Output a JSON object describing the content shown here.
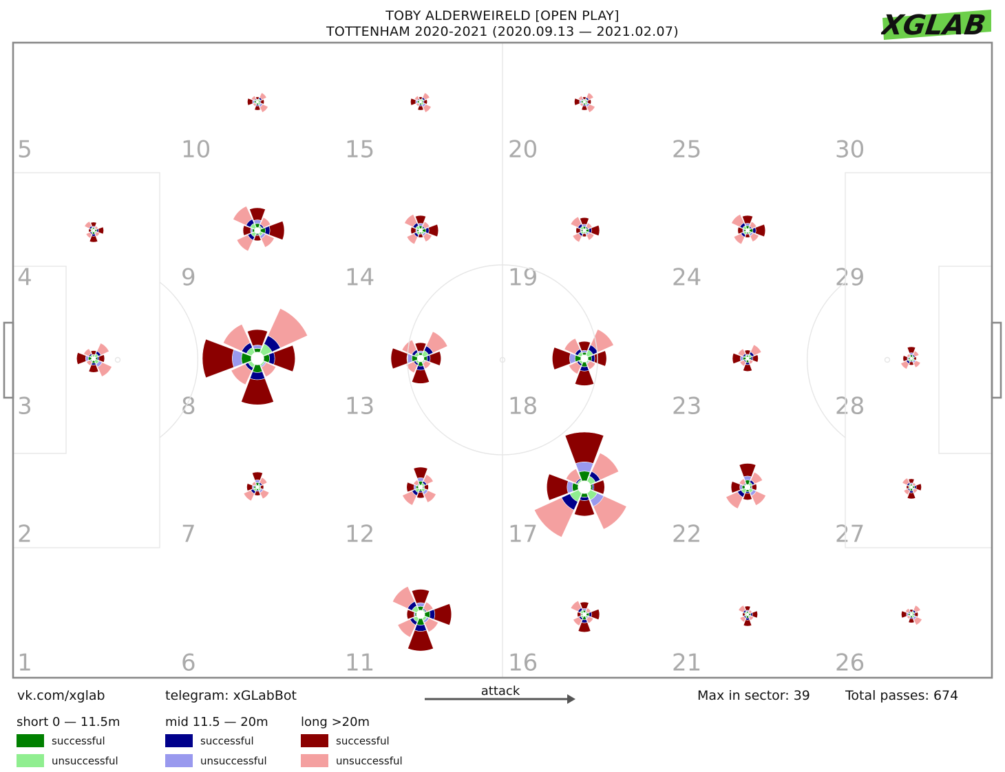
{
  "title": {
    "line1": "TOBY ALDERWEIRELD [OPEN PLAY]",
    "line2": "TOTTENHAM 2020-2021 (2020.09.13 — 2021.02.07)"
  },
  "logo_text": "XGLAB",
  "footer": {
    "vk": "vk.com/xglab",
    "telegram": "telegram: xGLabBot",
    "attack": "attack",
    "max_sector": "Max in sector: 39",
    "total_passes": "Total passes: 674"
  },
  "legend": {
    "short": {
      "title": "short 0 — 11.5m",
      "successful": "successful",
      "unsuccessful": "unsuccessful"
    },
    "mid": {
      "title": "mid 11.5 — 20m",
      "successful": "successful",
      "unsuccessful": "unsuccessful"
    },
    "long": {
      "title": "long >20m",
      "successful": "successful",
      "unsuccessful": "unsuccessful"
    }
  },
  "colors": {
    "short_successful": "#008000",
    "short_unsuccessful": "#90ee90",
    "mid_successful": "#00008b",
    "mid_unsuccessful": "#9999ee",
    "long_successful": "#8b0000",
    "long_unsuccessful": "#f4a0a0",
    "logo_green": "#6ccf4a",
    "pitch_line": "#e8e8e8",
    "frame": "#888888",
    "sector_number": "#aaaaaa"
  },
  "chart_data": {
    "type": "rose",
    "sectors": [
      "1",
      "2",
      "3",
      "4",
      "5",
      "6",
      "7",
      "8",
      "9",
      "10",
      "11",
      "12",
      "13",
      "14",
      "15",
      "16",
      "17",
      "18",
      "19",
      "20",
      "21",
      "22",
      "23",
      "24",
      "25",
      "26",
      "27",
      "28",
      "29",
      "30"
    ],
    "max_in_sector": 39,
    "total_passes": 674,
    "roses": [
      {
        "sector": 3,
        "n": 4
      },
      {
        "sector": 4,
        "n": 1
      },
      {
        "sector": 7,
        "n": 2
      },
      {
        "sector": 8,
        "n": 39
      },
      {
        "sector": 9,
        "n": 8
      },
      {
        "sector": 10,
        "n": 1
      },
      {
        "sector": 11,
        "n": 16
      },
      {
        "sector": 12,
        "n": 4
      },
      {
        "sector": 13,
        "n": 10
      },
      {
        "sector": 14,
        "n": 3
      },
      {
        "sector": 15,
        "n": 1
      },
      {
        "sector": 16,
        "n": 3
      },
      {
        "sector": 17,
        "n": 39
      },
      {
        "sector": 18,
        "n": 12
      },
      {
        "sector": 19,
        "n": 2
      },
      {
        "sector": 20,
        "n": 1
      },
      {
        "sector": 21,
        "n": 1
      },
      {
        "sector": 22,
        "n": 6
      },
      {
        "sector": 23,
        "n": 2
      },
      {
        "sector": 24,
        "n": 3
      },
      {
        "sector": 26,
        "n": 1
      },
      {
        "sector": 27,
        "n": 1
      },
      {
        "sector": 28,
        "n": 1
      }
    ]
  }
}
